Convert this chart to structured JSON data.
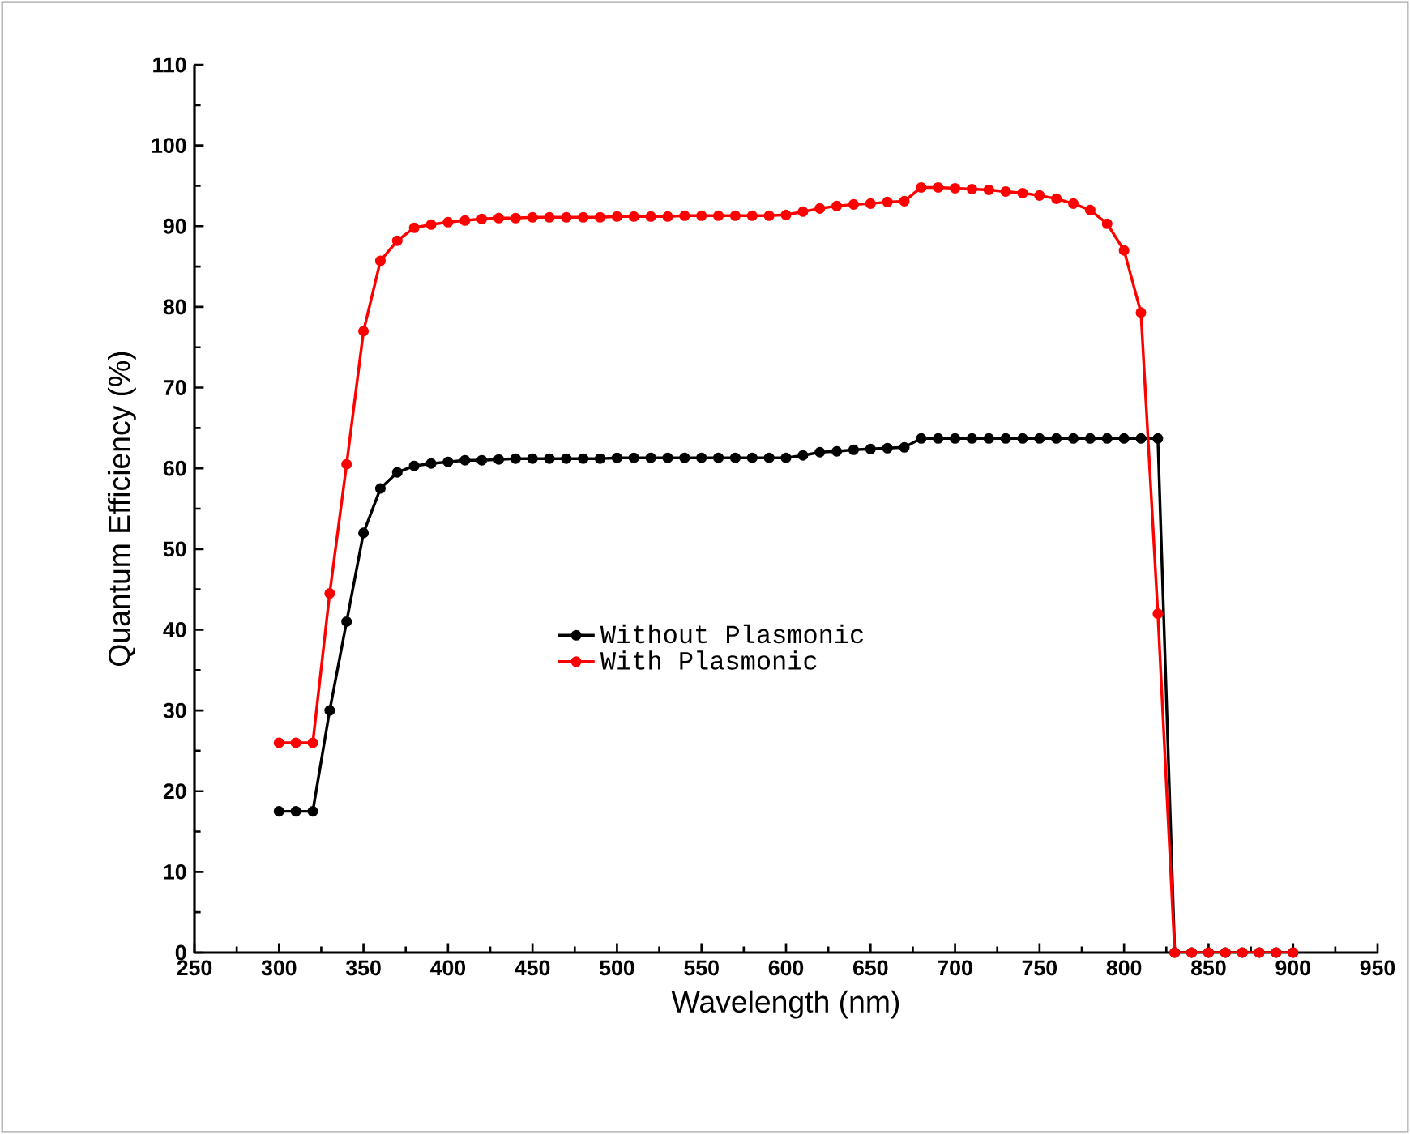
{
  "chart_data": {
    "type": "line",
    "xlabel": "Wavelength (nm)",
    "ylabel": "Quantum Efficiency (%)",
    "xlim": [
      250,
      950
    ],
    "xticks": [
      250,
      300,
      350,
      400,
      450,
      500,
      550,
      600,
      650,
      700,
      750,
      800,
      850,
      900,
      950
    ],
    "ylim": [
      0,
      110
    ],
    "yticks": [
      0,
      10,
      20,
      30,
      40,
      50,
      60,
      70,
      80,
      90,
      100,
      110
    ],
    "marker": "circle",
    "line_style": "solid",
    "legend": "center",
    "grid": false,
    "series": [
      {
        "name": "Without Plasmonic",
        "color": "#000000",
        "x": [
          300,
          310,
          320,
          330,
          340,
          350,
          360,
          370,
          380,
          390,
          400,
          410,
          420,
          430,
          440,
          450,
          460,
          470,
          480,
          490,
          500,
          510,
          520,
          530,
          540,
          550,
          560,
          570,
          580,
          590,
          600,
          610,
          620,
          630,
          640,
          650,
          660,
          670,
          680,
          690,
          700,
          710,
          720,
          730,
          740,
          750,
          760,
          770,
          780,
          790,
          800,
          810,
          820,
          830,
          840,
          850,
          860,
          870,
          880,
          890,
          900
        ],
        "values": [
          17.5,
          17.5,
          17.5,
          30,
          41,
          52,
          57.5,
          59.5,
          60.3,
          60.6,
          60.8,
          61,
          61,
          61.1,
          61.2,
          61.2,
          61.2,
          61.2,
          61.2,
          61.2,
          61.3,
          61.3,
          61.3,
          61.3,
          61.3,
          61.3,
          61.3,
          61.3,
          61.3,
          61.3,
          61.3,
          61.6,
          62,
          62.1,
          62.3,
          62.4,
          62.5,
          62.6,
          63.7,
          63.7,
          63.7,
          63.7,
          63.7,
          63.7,
          63.7,
          63.7,
          63.7,
          63.7,
          63.7,
          63.7,
          63.7,
          63.7,
          63.7,
          0,
          0,
          0,
          0,
          0,
          0,
          0,
          0
        ]
      },
      {
        "name": "With Plasmonic",
        "color": "#ff0000",
        "x": [
          300,
          310,
          320,
          330,
          340,
          350,
          360,
          370,
          380,
          390,
          400,
          410,
          420,
          430,
          440,
          450,
          460,
          470,
          480,
          490,
          500,
          510,
          520,
          530,
          540,
          550,
          560,
          570,
          580,
          590,
          600,
          610,
          620,
          630,
          640,
          650,
          660,
          670,
          680,
          690,
          700,
          710,
          720,
          730,
          740,
          750,
          760,
          770,
          780,
          790,
          800,
          810,
          820,
          830,
          840,
          850,
          860,
          870,
          880,
          890,
          900
        ],
        "values": [
          26,
          26,
          26,
          44.5,
          60.5,
          77,
          85.7,
          88.2,
          89.8,
          90.2,
          90.5,
          90.7,
          90.9,
          91,
          91,
          91.1,
          91.1,
          91.1,
          91.1,
          91.1,
          91.2,
          91.2,
          91.2,
          91.2,
          91.3,
          91.3,
          91.3,
          91.3,
          91.3,
          91.3,
          91.4,
          91.8,
          92.2,
          92.5,
          92.7,
          92.8,
          93,
          93.1,
          94.8,
          94.8,
          94.7,
          94.6,
          94.5,
          94.3,
          94.1,
          93.8,
          93.4,
          92.8,
          92,
          90.3,
          87,
          79.3,
          42,
          0,
          0,
          0,
          0,
          0,
          0,
          0,
          0
        ]
      }
    ]
  }
}
